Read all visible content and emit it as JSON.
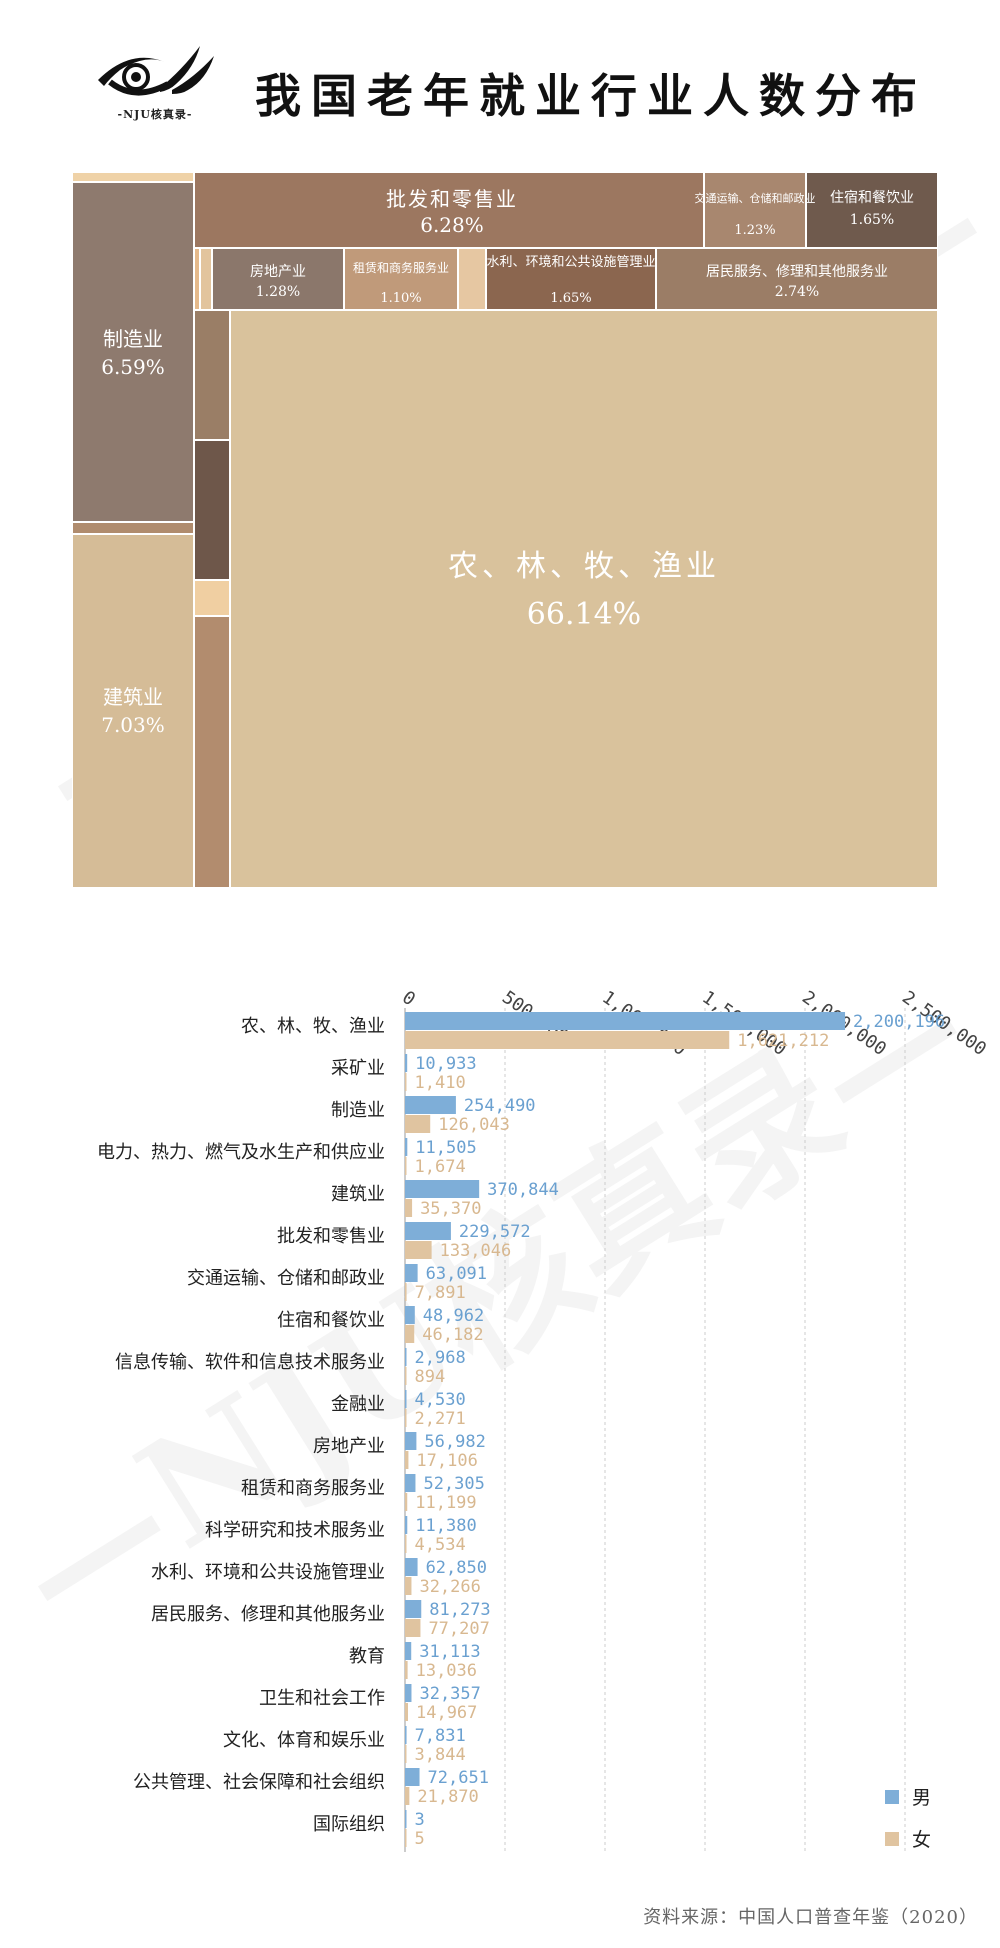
{
  "logo": {
    "text": "-NJU核真录-"
  },
  "title": "我国老年就业行业人数分布",
  "watermark": "—NJU核真录—",
  "source": "资料来源：中国人口普查年鉴（2020）",
  "colors": {
    "male": "#7eaed8",
    "female": "#e0c4a0",
    "male_label": "#6aa0d0",
    "female_label": "#d8b890",
    "gridline": "#cccccc"
  },
  "chart_data": [
    {
      "type": "treemap",
      "labeled_cells": [
        {
          "name": "农、林、牧、渔业",
          "value": "66.14%",
          "color": "#d9c29c"
        },
        {
          "name": "建筑业",
          "value": "7.03%",
          "color": "#d5bc97"
        },
        {
          "name": "制造业",
          "value": "6.59%",
          "color": "#8e7a6e"
        },
        {
          "name": "批发和零售业",
          "value": "6.28%",
          "color": "#9c7760"
        },
        {
          "name": "居民服务、修理和其他服务业",
          "value": "2.74%",
          "color": "#9b7d66"
        },
        {
          "name": "住宿和餐饮业",
          "value": "1.65%",
          "color": "#6f5a4d"
        },
        {
          "name": "水利、环境和公共设施管理业",
          "value": "1.65%",
          "color": "#8b664f"
        },
        {
          "name": "房地产业",
          "value": "1.28%",
          "color": "#8b776b"
        },
        {
          "name": "交通运输、仓储和邮政业",
          "value": "1.23%",
          "color": "#a8876f"
        },
        {
          "name": "租赁和商务服务业",
          "value": "1.10%",
          "color": "#c09a7a"
        }
      ]
    },
    {
      "type": "bar",
      "orientation": "horizontal",
      "categories": [
        "农、林、牧、渔业",
        "采矿业",
        "制造业",
        "电力、热力、燃气及水生产和供应业",
        "建筑业",
        "批发和零售业",
        "交通运输、仓储和邮政业",
        "住宿和餐饮业",
        "信息传输、软件和信息技术服务业",
        "金融业",
        "房地产业",
        "租赁和商务服务业",
        "科学研究和技术服务业",
        "水利、环境和公共设施管理业",
        "居民服务、修理和其他服务业",
        "教育",
        "卫生和社会工作",
        "文化、体育和娱乐业",
        "公共管理、社会保障和社会组织",
        "国际组织"
      ],
      "series": [
        {
          "name": "男",
          "values": [
            2200196,
            10933,
            254490,
            11505,
            370844,
            229572,
            63091,
            48962,
            2968,
            4530,
            56982,
            52305,
            11380,
            62850,
            81273,
            31113,
            32357,
            7831,
            72651,
            3
          ],
          "labels": [
            "2,200,196",
            "10,933",
            "254,490",
            "11,505",
            "370,844",
            "229,572",
            "63,091",
            "48,962",
            "2,968",
            "4,530",
            "56,982",
            "52,305",
            "11,380",
            "62,850",
            "81,273",
            "31,113",
            "32,357",
            "7,831",
            "72,651",
            "3"
          ]
        },
        {
          "name": "女",
          "values": [
            1621212,
            1410,
            126043,
            1674,
            35370,
            133046,
            7891,
            46182,
            894,
            2271,
            17106,
            11199,
            4534,
            32266,
            77207,
            13036,
            14967,
            3844,
            21870,
            5
          ],
          "labels": [
            "1,621,212",
            "1,410",
            "126,043",
            "1,674",
            "35,370",
            "133,046",
            "7,891",
            "46,182",
            "894",
            "2,271",
            "17,106",
            "11,199",
            "4,534",
            "32,266",
            "77,207",
            "13,036",
            "14,967",
            "3,844",
            "21,870",
            "5"
          ]
        }
      ],
      "x_ticks": [
        0,
        500000,
        1000000,
        1500000,
        2000000,
        2500000
      ],
      "x_tick_labels": [
        "0",
        "500,000",
        "1,000,000",
        "1,500,000",
        "2,000,000",
        "2,500,000"
      ],
      "xlim": [
        0,
        2500000
      ],
      "legend": [
        "男",
        "女"
      ],
      "legend_position": "bottom-right",
      "grid": true
    }
  ]
}
